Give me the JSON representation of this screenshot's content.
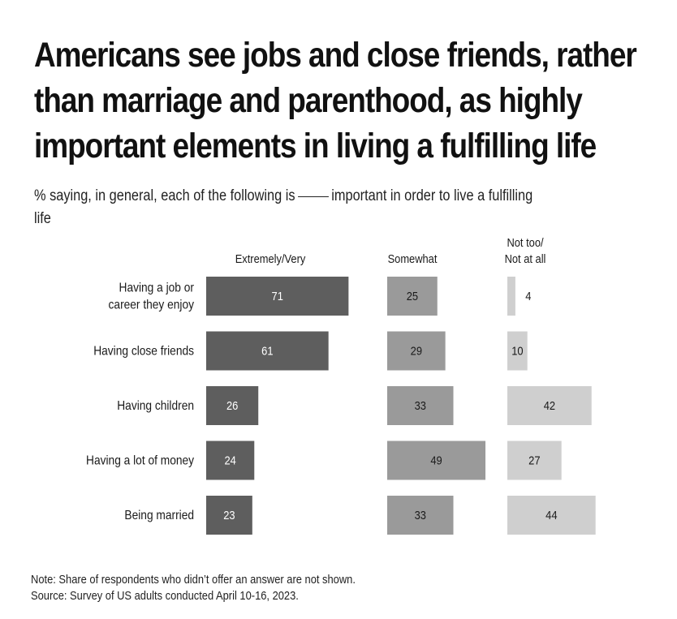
{
  "title": "Americans see jobs and close friends, rather than marriage and parenthood, as highly important elements in living a fulfilling life",
  "subtitle_before": "% saying, in general, each of the following is",
  "subtitle_after": "important in order to live a fulfilling life",
  "chart_data": {
    "type": "bar",
    "orientation": "horizontal",
    "categories": [
      [
        "Having a job or",
        "career they enjoy"
      ],
      [
        "Having close friends"
      ],
      [
        "Having children"
      ],
      [
        "Having a lot of money"
      ],
      [
        "Being married"
      ]
    ],
    "series": [
      {
        "name": "Extremely/Very",
        "header_lines": [
          "Extremely/Very"
        ],
        "values": [
          71,
          61,
          26,
          24,
          23
        ],
        "color": "#5e5e5e",
        "label_color": "#ffffff"
      },
      {
        "name": "Somewhat",
        "header_lines": [
          "Somewhat"
        ],
        "values": [
          25,
          29,
          33,
          49,
          33
        ],
        "color": "#9a9a9a",
        "label_color": "#1a1a1a"
      },
      {
        "name": "Not too/ Not at all",
        "header_lines": [
          "Not too/",
          "Not at all"
        ],
        "values": [
          4,
          10,
          42,
          27,
          44
        ],
        "color": "#cfcfcf",
        "label_color": "#1a1a1a"
      }
    ],
    "unit": "%"
  },
  "notes": {
    "note": "Note: Share of respondents who didn’t offer an answer are not shown.",
    "source": "Source: Survey of US adults conducted April 10-16, 2023."
  }
}
